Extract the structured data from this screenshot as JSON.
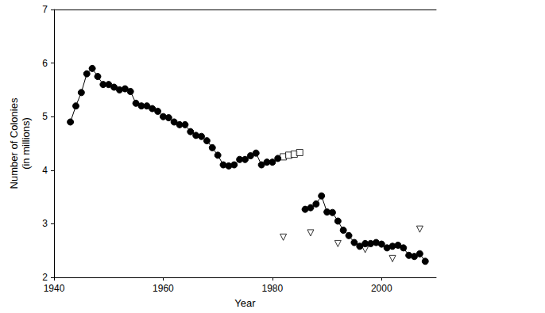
{
  "chart_data": {
    "type": "line",
    "x_label": "Year",
    "y_label": "Number of Colonies\n(in millions)",
    "xlim": [
      1940,
      2010
    ],
    "xticks": [
      1940,
      1960,
      1980,
      2000
    ],
    "ylim": [
      2,
      7
    ],
    "yticks": [
      2,
      3,
      4,
      5,
      6,
      7
    ],
    "grid": false,
    "series": [
      {
        "type": "line",
        "color": "#000000",
        "marker": "circle",
        "line_style": "solid",
        "x": [
          1943,
          1944,
          1945,
          1946,
          1947,
          1948,
          1949,
          1950,
          1951,
          1952,
          1953,
          1954,
          1955,
          1956,
          1957,
          1958,
          1959,
          1960,
          1961,
          1962,
          1963,
          1964,
          1965,
          1966,
          1967,
          1968,
          1969,
          1970,
          1971,
          1972,
          1973,
          1974,
          1975,
          1976,
          1977,
          1978,
          1979,
          1980,
          1981,
          1982,
          1983,
          1984,
          1985,
          1986,
          1987,
          1988,
          1989,
          1990,
          1991,
          1992,
          1993,
          1994,
          1995,
          1996,
          1997,
          1998,
          1999,
          2000,
          2001,
          2002,
          2003,
          2004,
          2005,
          2006,
          2007,
          2008
        ],
        "values": [
          4.9,
          5.2,
          5.45,
          5.8,
          5.9,
          5.75,
          5.6,
          5.6,
          5.55,
          5.5,
          5.52,
          5.47,
          5.25,
          5.2,
          5.2,
          5.15,
          5.1,
          5.0,
          4.98,
          4.9,
          4.85,
          4.85,
          4.72,
          4.65,
          4.63,
          4.55,
          4.42,
          4.28,
          4.1,
          4.08,
          4.1,
          4.2,
          4.2,
          4.27,
          4.32,
          4.1,
          4.15,
          4.15,
          4.22,
          null,
          null,
          null,
          null,
          3.27,
          3.3,
          3.37,
          3.52,
          3.22,
          3.21,
          3.05,
          2.88,
          2.78,
          2.65,
          2.58,
          2.63,
          2.63,
          2.65,
          2.62,
          2.55,
          2.58,
          2.6,
          2.55,
          2.41,
          2.39,
          2.44,
          2.3
        ]
      },
      {
        "type": "scatter",
        "color": "#000000",
        "marker": "open_square",
        "x": [
          1982,
          1983,
          1984,
          1985
        ],
        "values": [
          4.25,
          4.28,
          4.3,
          4.33
        ]
      },
      {
        "type": "scatter",
        "color": "#000000",
        "marker": "open_triangle",
        "x": [
          1982,
          1987,
          1992,
          1997,
          2002,
          2007
        ],
        "values": [
          2.75,
          2.83,
          2.63,
          2.52,
          2.35,
          2.9
        ]
      }
    ]
  }
}
